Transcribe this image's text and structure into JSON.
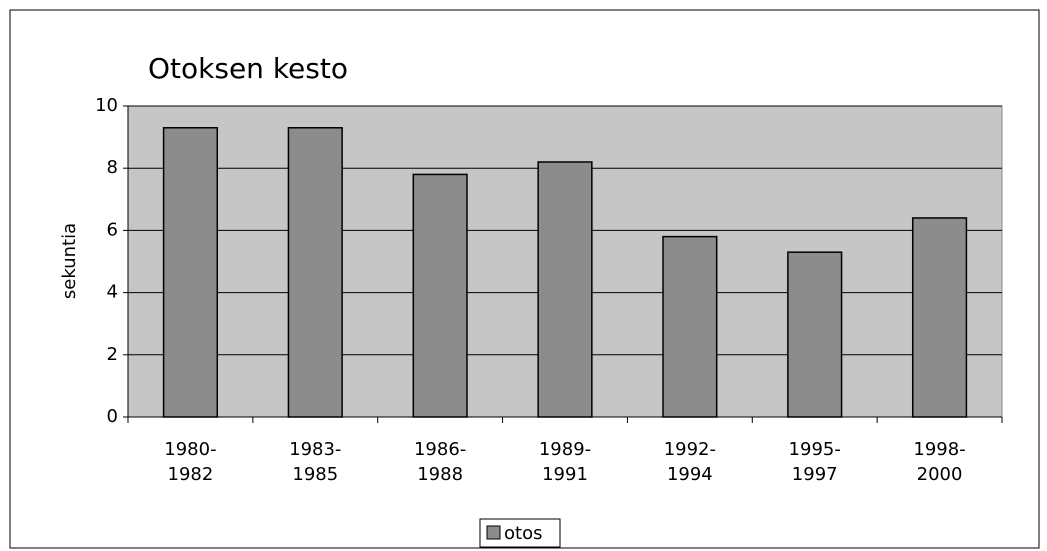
{
  "chart_data": {
    "type": "bar",
    "title": "Otoksen kesto",
    "y_label": "sekuntia",
    "categories": [
      "1980-1982",
      "1983-1985",
      "1986-1988",
      "1989-1991",
      "1992-1994",
      "1995-1997",
      "1998-2000"
    ],
    "series": [
      {
        "name": "otos",
        "color": "#8c8c8c",
        "values": [
          9.3,
          9.3,
          7.8,
          8.2,
          5.8,
          5.3,
          6.4
        ]
      }
    ],
    "ylim": [
      0,
      10
    ],
    "yticks": [
      0,
      2,
      4,
      6,
      8,
      10
    ],
    "grid": true,
    "legend": "bottom"
  }
}
